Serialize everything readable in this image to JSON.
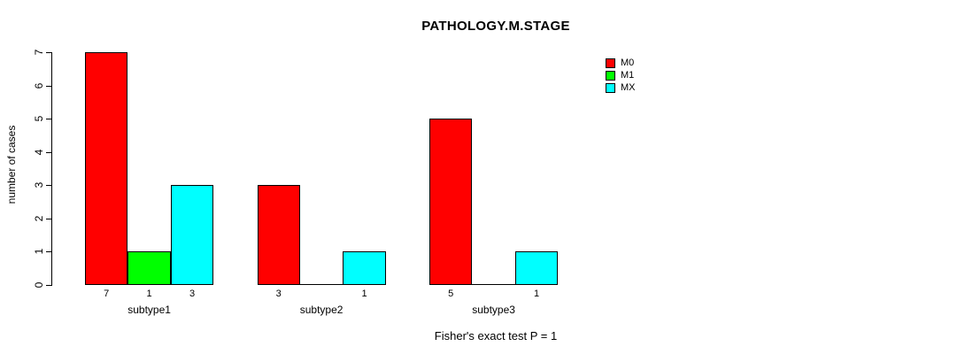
{
  "title": "PATHOLOGY.M.STAGE",
  "caption": "Fisher's exact test P = 1",
  "legend": {
    "entries": [
      {
        "label": "M0",
        "color": "#FF0000"
      },
      {
        "label": "M1",
        "color": "#00FF00"
      },
      {
        "label": "MX",
        "color": "#00FFFF"
      }
    ]
  },
  "chart_data": {
    "type": "bar",
    "title": "PATHOLOGY.M.STAGE",
    "xlabel": "",
    "ylabel": "number of cases",
    "ylim": [
      0,
      7
    ],
    "yticks": [
      0,
      1,
      2,
      3,
      4,
      5,
      6,
      7
    ],
    "grid": false,
    "legend_position": "right-outside",
    "categories": [
      "subtype1",
      "subtype2",
      "subtype3"
    ],
    "series": [
      {
        "name": "M0",
        "color": "#FF0000",
        "values": [
          7,
          3,
          5
        ]
      },
      {
        "name": "M1",
        "color": "#00FF00",
        "values": [
          1,
          0,
          0
        ]
      },
      {
        "name": "MX",
        "color": "#00FFFF",
        "values": [
          3,
          1,
          1
        ]
      }
    ],
    "bar_value_labels": [
      [
        "7",
        "1",
        "3"
      ],
      [
        "3",
        "",
        "1"
      ],
      [
        "5",
        "",
        "1"
      ]
    ],
    "annotation": "Fisher's exact test P = 1"
  }
}
